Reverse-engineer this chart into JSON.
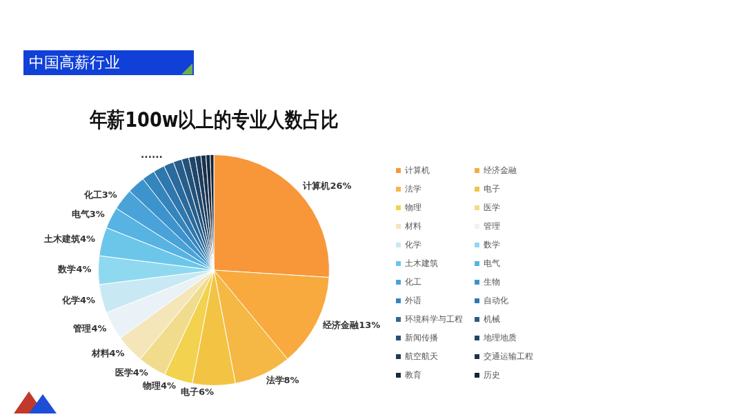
{
  "chart_data": {
    "type": "pie",
    "subtitle": "中国高薪行业",
    "title": "年薪100w以上的专业人数占比",
    "categories": [
      "计算机",
      "经济金融",
      "法学",
      "电子",
      "物理",
      "医学",
      "材料",
      "管理",
      "化学",
      "数学",
      "土木建筑",
      "电气",
      "化工",
      "生物",
      "外语",
      "自动化",
      "环境科学与工程",
      "机械",
      "新闻传播",
      "地理地质",
      "航空航天",
      "交通运输工程",
      "教育",
      "历史"
    ],
    "values": [
      26,
      13,
      8,
      6,
      4,
      4,
      4,
      4,
      4,
      4,
      4,
      3,
      3,
      2.5,
      1.8,
      1.6,
      1.4,
      1.2,
      1,
      0.9,
      0.8,
      0.7,
      0.6,
      0.5
    ],
    "value_labels": [
      "26%",
      "13%",
      "8%",
      "6%",
      "4%",
      "4%",
      "4%",
      "4%",
      "4%",
      "4%",
      "4%",
      "3%",
      "3%",
      null,
      null,
      null,
      null,
      null,
      null,
      null,
      null,
      null,
      null,
      null
    ],
    "colors": [
      "#f7973a",
      "#f8aa3f",
      "#f5b844",
      "#f3c443",
      "#f2d24e",
      "#f0dc8c",
      "#f4e6b8",
      "#eaf2f8",
      "#c8e9f3",
      "#8fd9f0",
      "#6cc6ea",
      "#56b3e2",
      "#4aa3d8",
      "#3d94cc",
      "#3585bd",
      "#2f77ad",
      "#2a6a9c",
      "#265d8b",
      "#22517a",
      "#1f466a",
      "#1c3c5c",
      "#19334e",
      "#162b42",
      "#132436"
    ],
    "legend": "right",
    "annotations": [
      "......"
    ]
  }
}
